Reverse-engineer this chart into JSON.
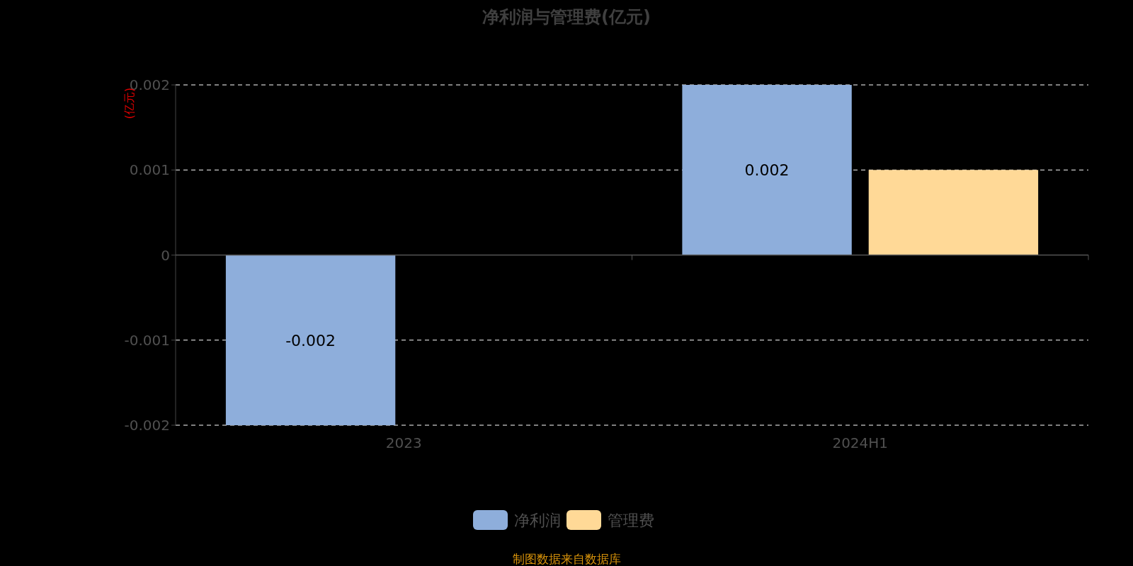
{
  "chart_data": {
    "type": "bar",
    "title": "净利润与管理费(亿元)",
    "ylabel": "(亿元)",
    "categories": [
      "2023",
      "2024H1"
    ],
    "series": [
      {
        "name": "净利润",
        "color": "#8eaedb",
        "values": [
          -0.002,
          0.002
        ],
        "value_labels": [
          "-0.002",
          "0.002"
        ]
      },
      {
        "name": "管理费",
        "color": "#ffd997",
        "values": [
          null,
          0.001
        ]
      }
    ],
    "ylim": [
      -0.002,
      0.002
    ],
    "yticks": [
      -0.002,
      -0.001,
      0,
      0.001,
      0.002
    ],
    "grid": "y",
    "legend": "bottom",
    "annotations": [
      "制图数据来自数据库"
    ]
  }
}
